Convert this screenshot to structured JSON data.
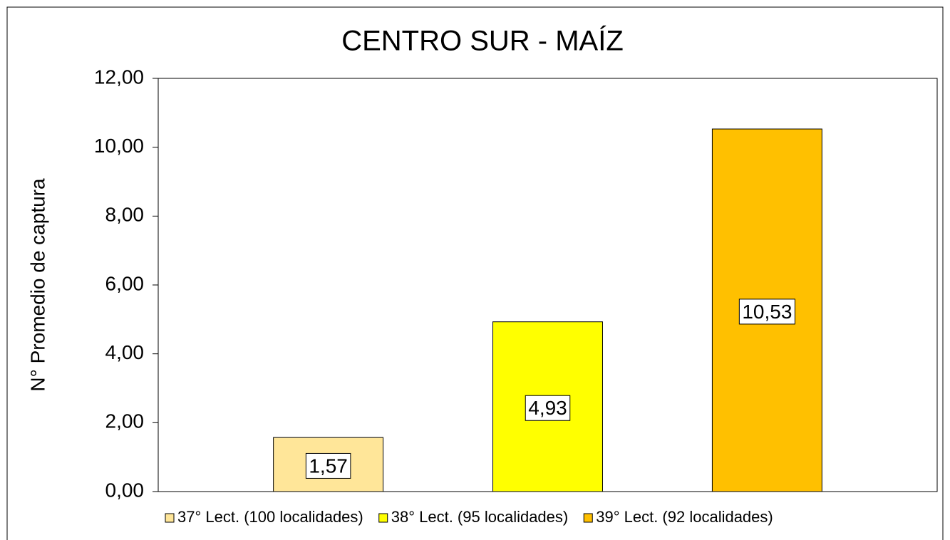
{
  "chart_data": {
    "type": "bar",
    "title": "CENTRO SUR - MAÍZ",
    "y_label": "N° Promedio de captura",
    "categories": [
      null
    ],
    "series": [
      {
        "name": "37° Lect. (100 localidades)",
        "color": "#ffe699",
        "values": [
          1.57
        ],
        "value_labels": [
          "1,57"
        ]
      },
      {
        "name": "38° Lect. (95 localidades)",
        "color": "#ffff00",
        "values": [
          4.93
        ],
        "value_labels": [
          "4,93"
        ]
      },
      {
        "name": "39° Lect. (92 localidades)",
        "color": "#ffc000",
        "values": [
          10.53
        ],
        "value_labels": [
          "10,53"
        ]
      }
    ],
    "ylim": [
      0,
      12
    ],
    "yticks": [
      {
        "value": 0,
        "label": "0,00"
      },
      {
        "value": 2,
        "label": "2,00"
      },
      {
        "value": 4,
        "label": "4,00"
      },
      {
        "value": 6,
        "label": "6,00"
      },
      {
        "value": 8,
        "label": "8,00"
      },
      {
        "value": 10,
        "label": "10,00"
      },
      {
        "value": 12,
        "label": "12,00"
      }
    ],
    "grid": false,
    "legend": "bottom"
  }
}
